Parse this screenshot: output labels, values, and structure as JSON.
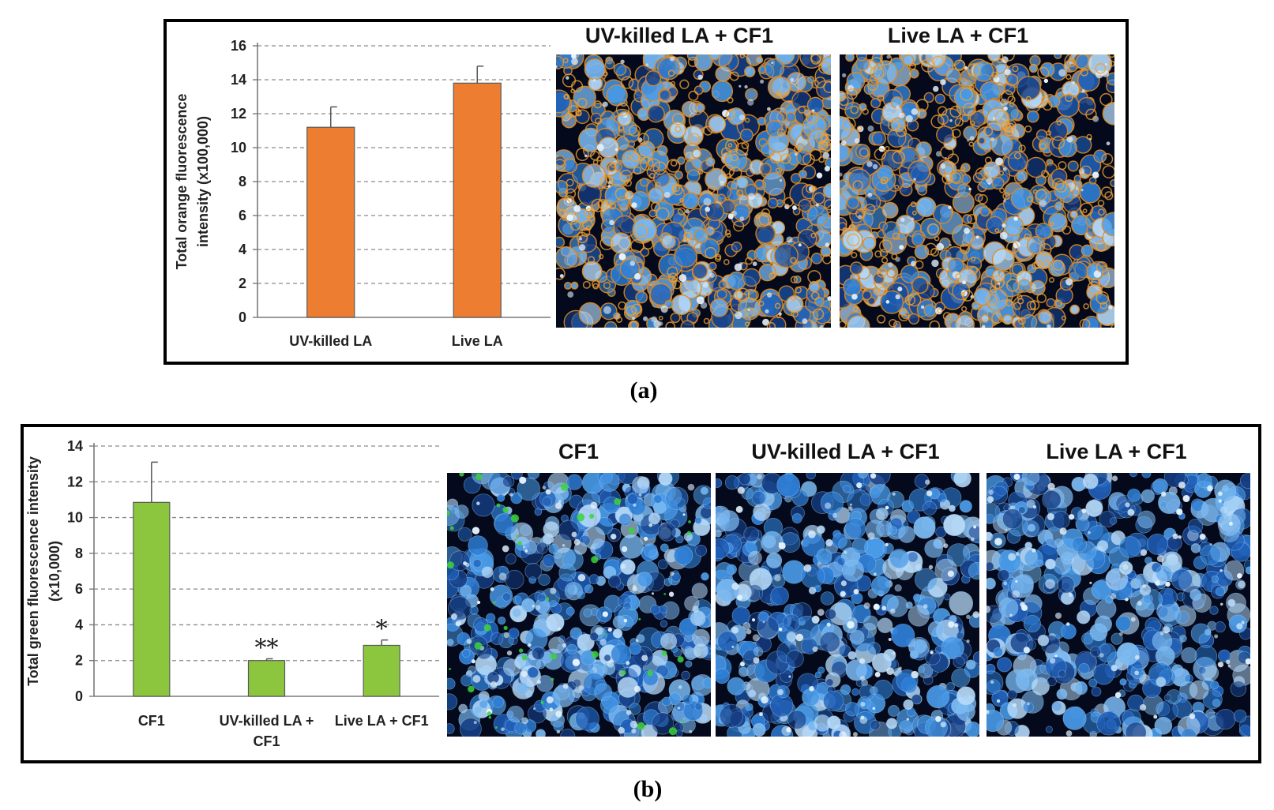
{
  "chart_data": [
    {
      "panel": "(a)",
      "type": "bar",
      "categories": [
        "UV-killed LA",
        "Live LA"
      ],
      "values": [
        11.2,
        13.8
      ],
      "errors": [
        1.2,
        1.0
      ],
      "ylabel_line1": "Total orange fluorescence",
      "ylabel_line2": "intensity (x100,000)",
      "ylim": [
        0,
        16
      ],
      "yticks": [
        0,
        2,
        4,
        6,
        8,
        10,
        12,
        14,
        16
      ],
      "grid": true,
      "bar_color": "#ed7d31",
      "significance": [
        "",
        ""
      ]
    },
    {
      "panel": "(b)",
      "type": "bar",
      "categories": [
        "CF1",
        "UV-killed LA + CF1",
        "Live LA + CF1"
      ],
      "category_lines": [
        [
          "CF1"
        ],
        [
          "UV-killed LA +",
          "CF1"
        ],
        [
          "Live LA + CF1"
        ]
      ],
      "values": [
        10.85,
        2.0,
        2.85
      ],
      "errors": [
        2.25,
        0.1,
        0.3
      ],
      "ylabel_line1": "Total green fluorescence intensity",
      "ylabel_line2": "(x10,000)",
      "ylim": [
        0,
        14
      ],
      "yticks": [
        0,
        2,
        4,
        6,
        8,
        10,
        12,
        14
      ],
      "grid": true,
      "bar_color": "#8cc63f",
      "significance": [
        "",
        "**",
        "*"
      ]
    }
  ],
  "panel_a": {
    "label": "(a)",
    "images": [
      {
        "title": "UV-killed LA + CF1",
        "style": "orange"
      },
      {
        "title": "Live LA + CF1",
        "style": "orange"
      }
    ]
  },
  "panel_b": {
    "label": "(b)",
    "images": [
      {
        "title": "CF1",
        "style": "blue-green"
      },
      {
        "title": "UV-killed LA + CF1",
        "style": "blue"
      },
      {
        "title": "Live LA + CF1",
        "style": "blue"
      }
    ]
  },
  "colors": {
    "orange_bar": "#ed7d31",
    "green_bar": "#8cc63f",
    "cell_blue": "#2f7fd6",
    "cell_orange": "#e08a1e",
    "green_spot": "#3cd23c"
  }
}
